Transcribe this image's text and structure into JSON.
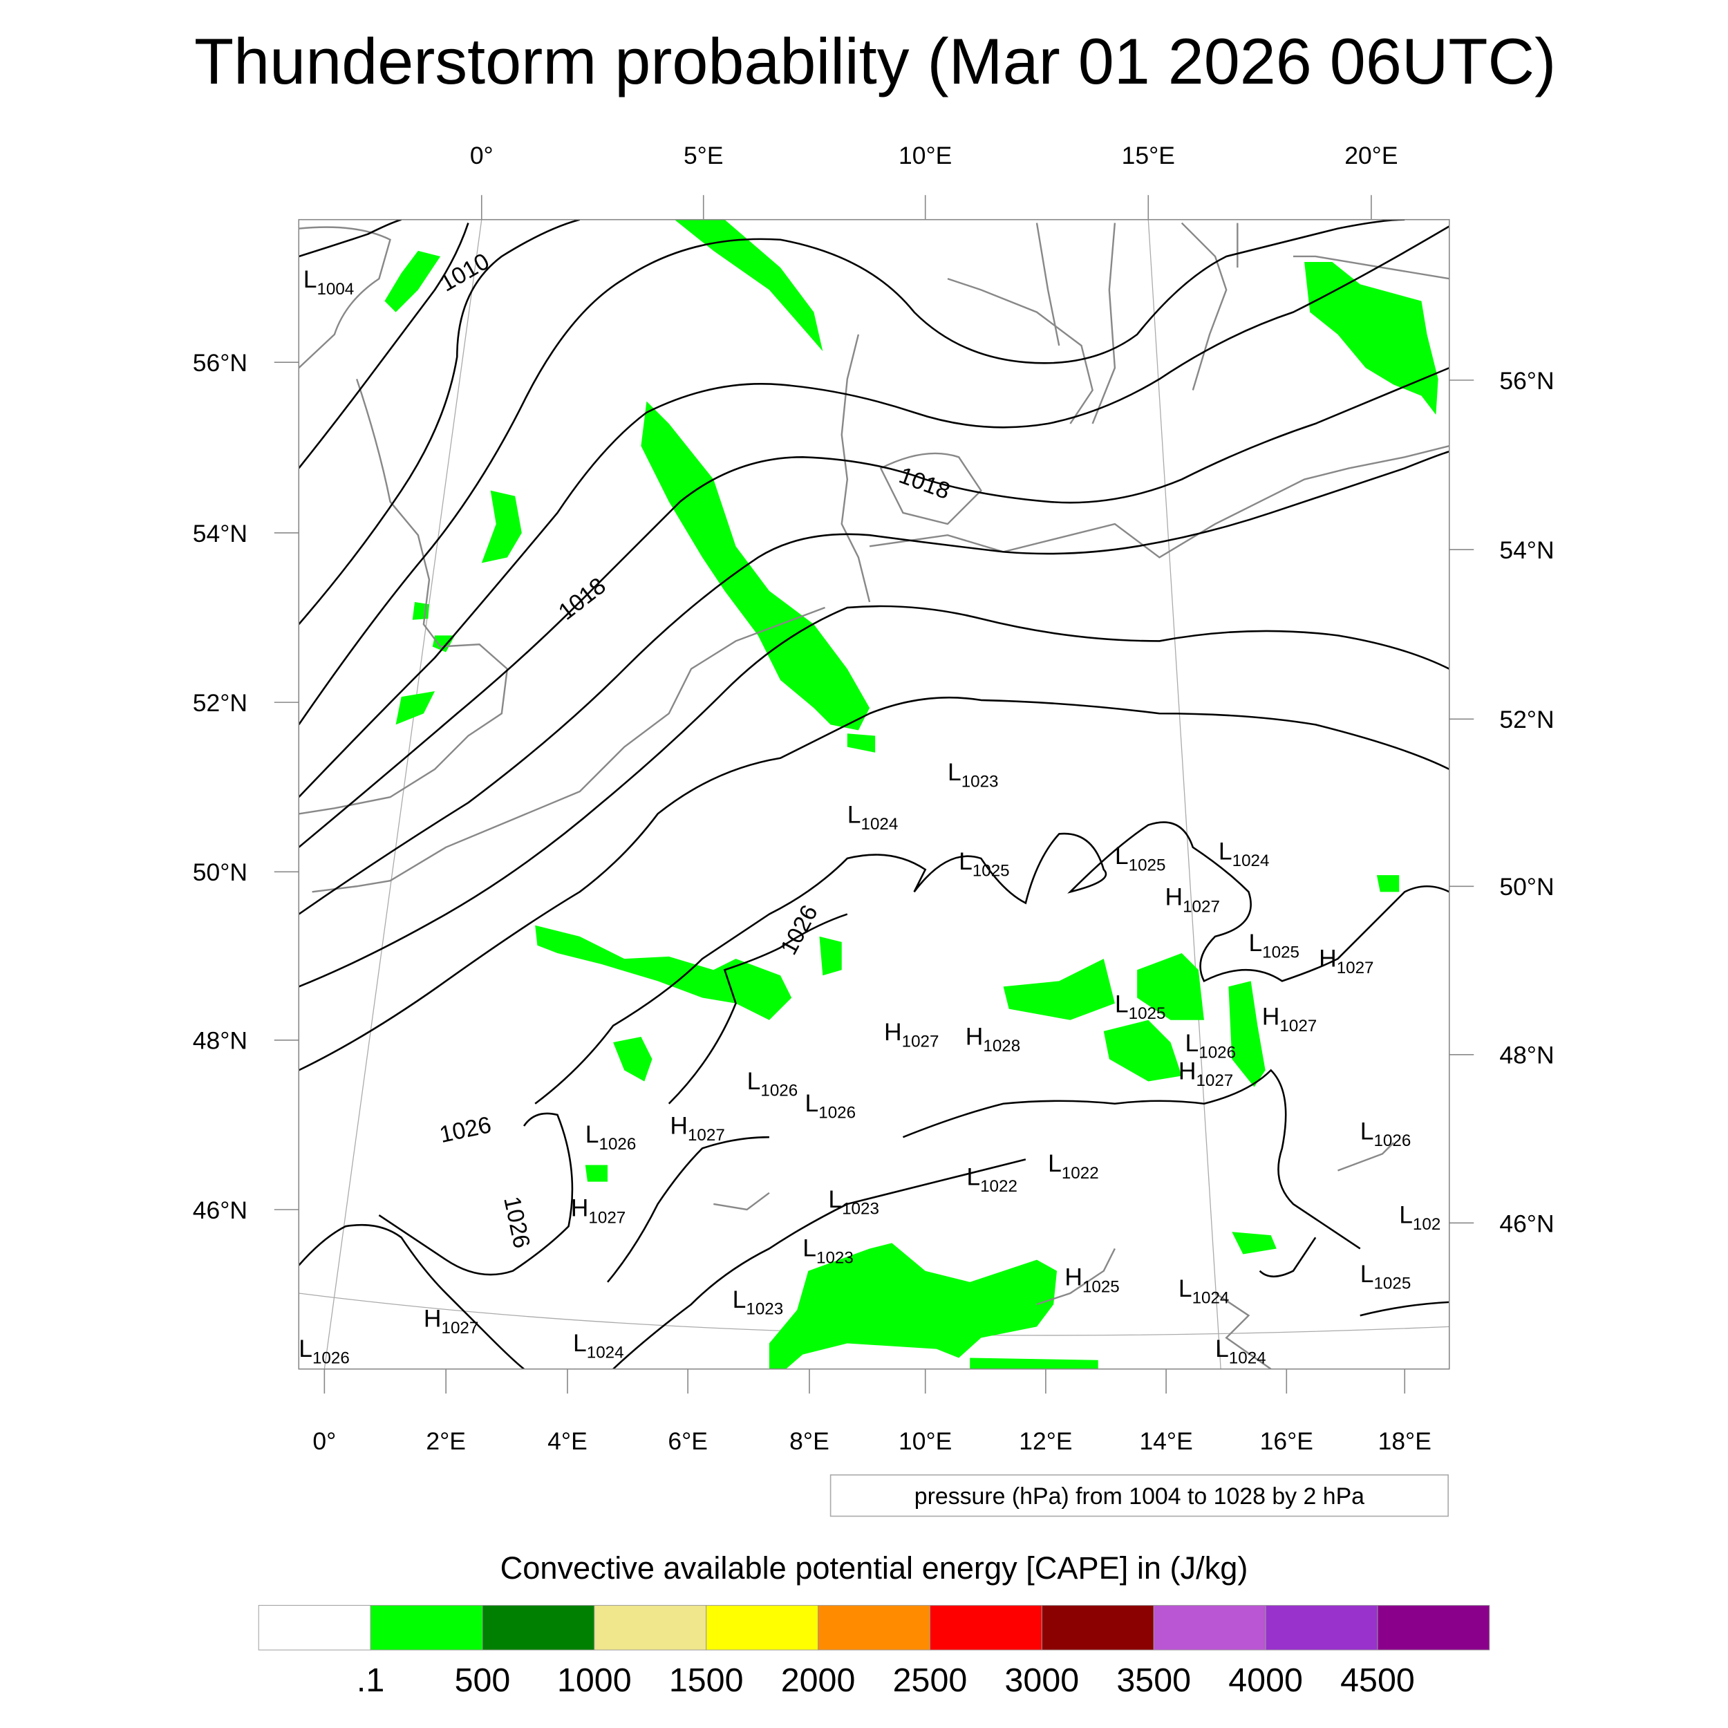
{
  "title": "Thunderstorm probability (Mar 01 2026 06UTC)",
  "map": {
    "top_lon_labels": [
      "0°",
      "5°E",
      "10°E",
      "15°E",
      "20°E"
    ],
    "bottom_lon_labels": [
      "0°",
      "2°E",
      "4°E",
      "6°E",
      "8°E",
      "10°E",
      "12°E",
      "14°E",
      "16°E",
      "18°E"
    ],
    "left_lat_labels": [
      "56°N",
      "54°N",
      "52°N",
      "50°N",
      "48°N",
      "46°N"
    ],
    "right_lat_labels": [
      "56°N",
      "54°N",
      "52°N",
      "50°N",
      "48°N",
      "46°N"
    ],
    "contour_labels": [
      "1010",
      "1018",
      "1018",
      "1026",
      "1026",
      "1026"
    ],
    "pressure_centers": [
      {
        "type": "L",
        "value": "1004"
      },
      {
        "type": "L",
        "value": "1023"
      },
      {
        "type": "L",
        "value": "1024"
      },
      {
        "type": "L",
        "value": "1025"
      },
      {
        "type": "L",
        "value": "1025"
      },
      {
        "type": "L",
        "value": "1024"
      },
      {
        "type": "H",
        "value": "1027"
      },
      {
        "type": "L",
        "value": "1025"
      },
      {
        "type": "H",
        "value": "1027"
      },
      {
        "type": "L",
        "value": "1025"
      },
      {
        "type": "H",
        "value": "1027"
      },
      {
        "type": "H",
        "value": "1027"
      },
      {
        "type": "H",
        "value": "1028"
      },
      {
        "type": "L",
        "value": "1026"
      },
      {
        "type": "H",
        "value": "1027"
      },
      {
        "type": "L",
        "value": "1026"
      },
      {
        "type": "L",
        "value": "1026"
      },
      {
        "type": "L",
        "value": "1026"
      },
      {
        "type": "H",
        "value": "1027"
      },
      {
        "type": "L",
        "value": "1026"
      },
      {
        "type": "L",
        "value": "1022"
      },
      {
        "type": "L",
        "value": "1022"
      },
      {
        "type": "L",
        "value": "1023"
      },
      {
        "type": "H",
        "value": "1027"
      },
      {
        "type": "L",
        "value": "102"
      },
      {
        "type": "L",
        "value": "1023"
      },
      {
        "type": "L",
        "value": "1025"
      },
      {
        "type": "H",
        "value": "1025"
      },
      {
        "type": "L",
        "value": "1024"
      },
      {
        "type": "L",
        "value": "1023"
      },
      {
        "type": "H",
        "value": "1027"
      },
      {
        "type": "L",
        "value": "1024"
      },
      {
        "type": "L",
        "value": "1024"
      },
      {
        "type": "L",
        "value": "1026"
      }
    ]
  },
  "contour_legend": "pressure (hPa) from 1004 to 1028 by 2 hPa",
  "colorbar": {
    "title": "Convective available potential energy [CAPE] in (J/kg)",
    "colors": [
      "#ffffff",
      "#00ff00",
      "#008000",
      "#f0e68c",
      "#ffff00",
      "#ff8c00",
      "#ff0000",
      "#8b0000",
      "#ba55d3",
      "#9932cc",
      "#8b008b"
    ],
    "labels": [
      ".1",
      "500",
      "1000",
      "1500",
      "2000",
      "2500",
      "3000",
      "3500",
      "4000",
      "4500"
    ]
  }
}
